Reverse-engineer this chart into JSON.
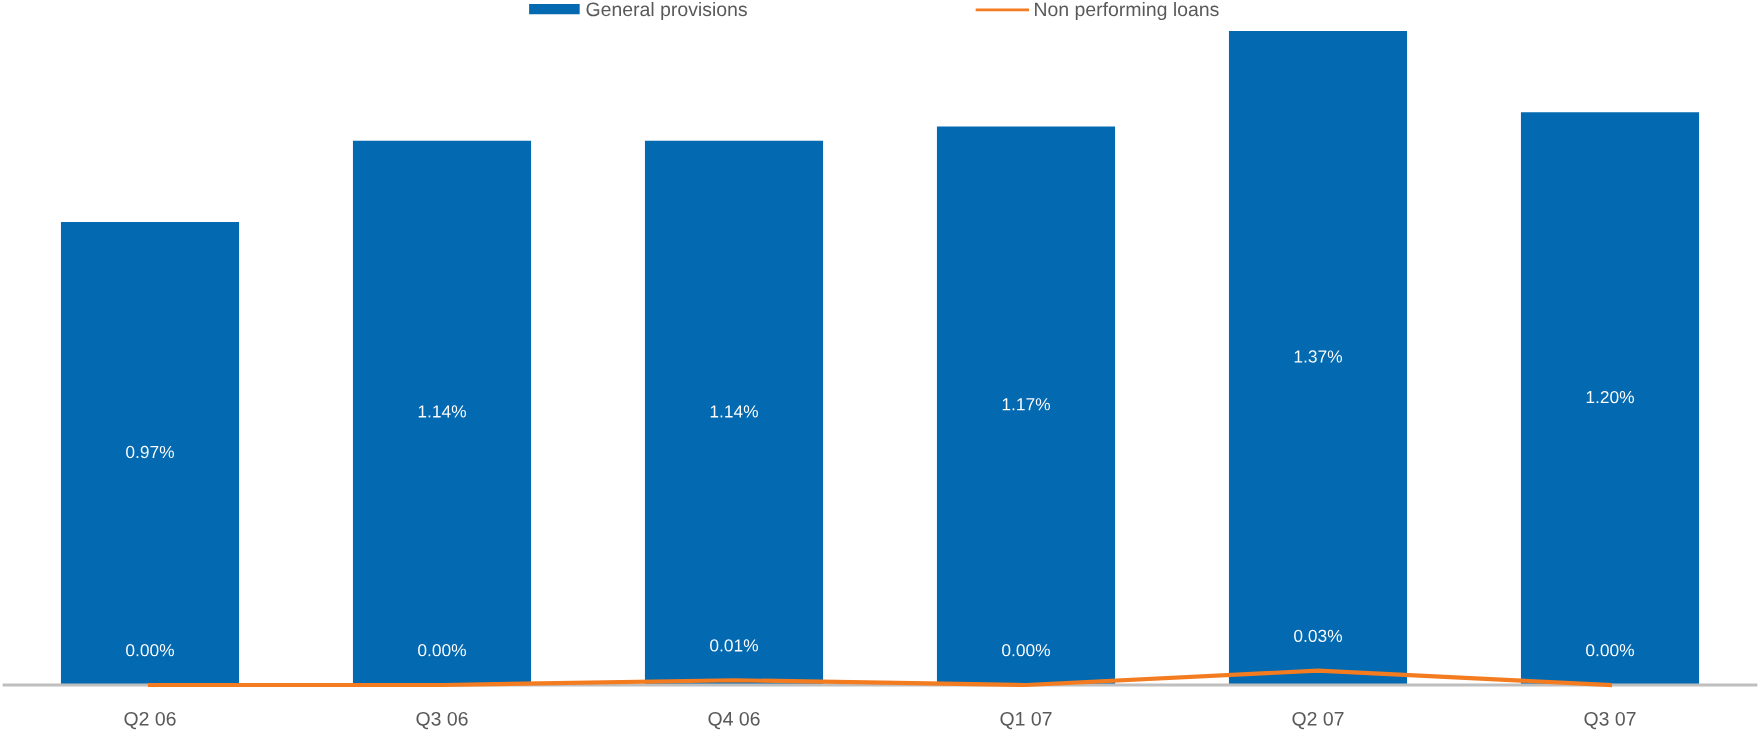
{
  "chart_data": {
    "type": "bar",
    "categories": [
      "Q2 06",
      "Q3 06",
      "Q4 06",
      "Q1 07",
      "Q2 07",
      "Q3 07"
    ],
    "series": [
      {
        "name": "General provisions",
        "color": "#0369b1",
        "values": [
          0.97,
          1.14,
          1.14,
          1.17,
          1.37,
          1.2
        ],
        "value_labels": [
          "0.97%",
          "1.14%",
          "1.14%",
          "1.17%",
          "1.37%",
          "1.20%"
        ]
      },
      {
        "name": "Non performing loans",
        "type": "line",
        "color": "#f47c20",
        "values": [
          0.0,
          0.0,
          0.01,
          0.0,
          0.03,
          0.0
        ],
        "value_labels": [
          "0.00%",
          "0.00%",
          "0.01%",
          "0.00%",
          "0.03%",
          "0.00%"
        ]
      }
    ],
    "legend": "top",
    "grid": false,
    "marker": "none",
    "line_style": "solid"
  }
}
